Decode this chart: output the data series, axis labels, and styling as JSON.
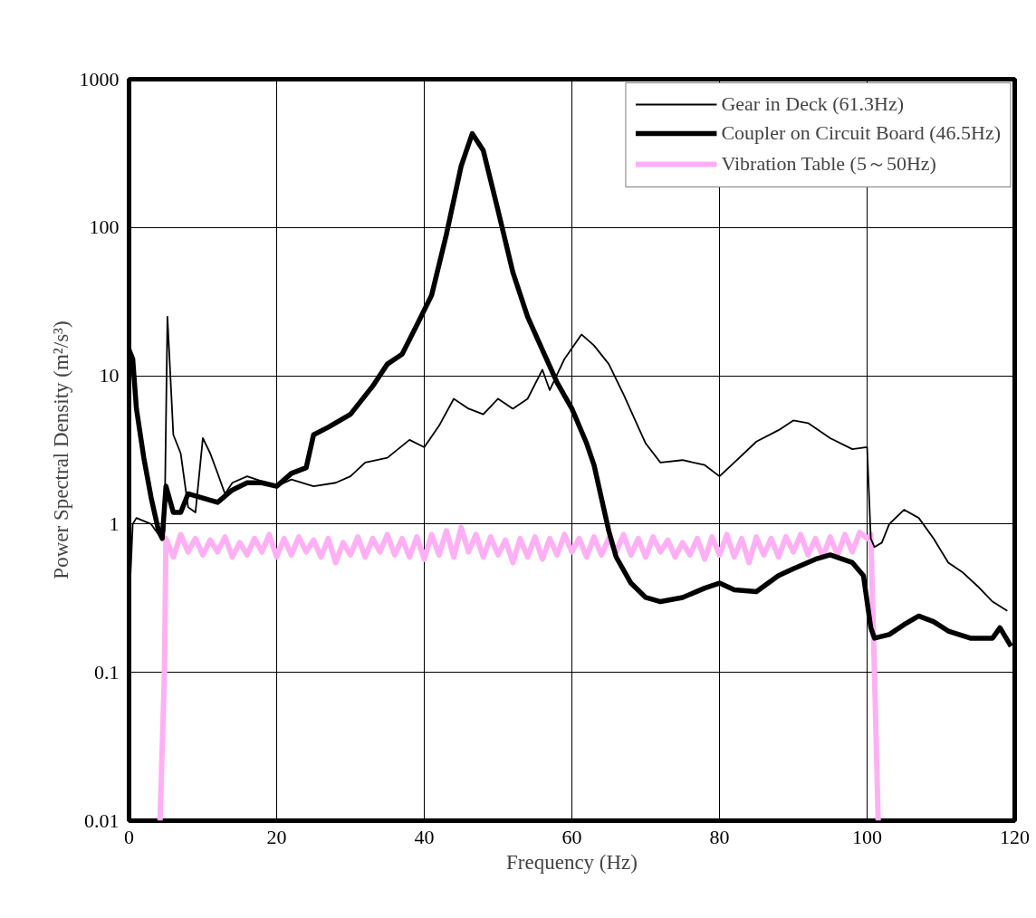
{
  "chart_data": {
    "type": "line",
    "xlabel": "Frequency (Hz)",
    "ylabel": "Power Spectral Density (m²/s³)",
    "xlim": [
      0,
      120
    ],
    "xticks": [
      0,
      20,
      40,
      60,
      80,
      100,
      120
    ],
    "ylim": [
      0.01,
      1000
    ],
    "yticks": [
      0.01,
      0.1,
      1,
      10,
      100,
      1000
    ],
    "log": "y",
    "grid": true,
    "legend": "top right",
    "marker": "none",
    "line_style": "solid",
    "series": [
      {
        "name": "Gear in Deck (61.3Hz)",
        "color": "#000000",
        "x": [
          0,
          0.5,
          1,
          3,
          4,
          4.8,
          5.2,
          6,
          7,
          8,
          9,
          10,
          11,
          12,
          13,
          14,
          16,
          20,
          22,
          25,
          28,
          30,
          32,
          35,
          38,
          40,
          42,
          44,
          46,
          48,
          50,
          52,
          54,
          56,
          57,
          59,
          61.3,
          63,
          65,
          67,
          69,
          70,
          72,
          75,
          78,
          80,
          82,
          85,
          88,
          90,
          92,
          95,
          98,
          100,
          100.5,
          101,
          102,
          103,
          105,
          107,
          109,
          111,
          113,
          115,
          117,
          119
        ],
        "values": [
          0.27,
          1.0,
          1.1,
          1.0,
          0.85,
          0.9,
          25,
          4,
          3,
          1.3,
          1.2,
          3.8,
          3,
          2.2,
          1.6,
          1.9,
          2.1,
          1.8,
          2.0,
          1.8,
          1.9,
          2.1,
          2.6,
          2.8,
          3.7,
          3.3,
          4.6,
          7,
          6,
          5.5,
          7,
          6,
          7,
          11,
          8,
          13,
          19,
          16,
          12,
          7.5,
          4.5,
          3.5,
          2.6,
          2.7,
          2.5,
          2.1,
          2.6,
          3.6,
          4.3,
          5,
          4.8,
          3.8,
          3.2,
          3.3,
          0.8,
          0.7,
          0.75,
          1.0,
          1.25,
          1.1,
          0.8,
          0.55,
          0.47,
          0.38,
          0.3,
          0.26
        ]
      },
      {
        "name": "Coupler on Circuit Board (46.5Hz)",
        "color": "#000000",
        "x": [
          0,
          0.5,
          1,
          2,
          3,
          4,
          4.5,
          5,
          6,
          7,
          8,
          10,
          12,
          14,
          16,
          18,
          20,
          22,
          24,
          25,
          27,
          30,
          33,
          35,
          37,
          39,
          41,
          43,
          45,
          46.5,
          48,
          50,
          52,
          54,
          56,
          58,
          60,
          62,
          63,
          64,
          65,
          66,
          68,
          70,
          72,
          75,
          78,
          80,
          82,
          85,
          88,
          90,
          93,
          95,
          98,
          99.5,
          100.5,
          101,
          103,
          105,
          107,
          109,
          111,
          114,
          117,
          118,
          119.5
        ],
        "values": [
          15,
          13,
          6,
          2.8,
          1.5,
          0.9,
          0.8,
          1.8,
          1.2,
          1.2,
          1.6,
          1.5,
          1.4,
          1.7,
          1.9,
          1.9,
          1.8,
          2.2,
          2.4,
          4,
          4.5,
          5.5,
          8.5,
          12,
          14,
          22,
          35,
          90,
          260,
          430,
          330,
          130,
          50,
          25,
          15,
          9,
          6,
          3.5,
          2.5,
          1.5,
          0.9,
          0.6,
          0.4,
          0.32,
          0.3,
          0.32,
          0.37,
          0.4,
          0.36,
          0.35,
          0.45,
          0.5,
          0.58,
          0.62,
          0.55,
          0.45,
          0.2,
          0.17,
          0.18,
          0.21,
          0.24,
          0.22,
          0.19,
          0.17,
          0.17,
          0.2,
          0.15
        ]
      },
      {
        "name": "Vibration Table (5～50Hz)",
        "color": "#ffb0f5",
        "x": [
          4.2,
          4.8,
          5,
          6,
          7,
          8,
          9,
          10,
          11,
          12,
          13,
          14,
          15,
          16,
          17,
          18,
          19,
          20,
          21,
          22,
          23,
          24,
          25,
          26,
          27,
          28,
          29,
          30,
          31,
          32,
          33,
          34,
          35,
          36,
          37,
          38,
          39,
          40,
          41,
          42,
          43,
          44,
          45,
          46,
          47,
          48,
          49,
          50,
          51,
          52,
          53,
          54,
          55,
          56,
          57,
          58,
          59,
          60,
          61,
          62,
          63,
          64,
          65,
          66,
          67,
          68,
          69,
          70,
          71,
          72,
          73,
          74,
          75,
          76,
          77,
          78,
          79,
          80,
          81,
          82,
          83,
          84,
          85,
          86,
          87,
          88,
          89,
          90,
          91,
          92,
          93,
          94,
          95,
          96,
          97,
          98,
          99,
          100,
          100.5,
          101,
          101.5
        ],
        "values": [
          0.01,
          0.1,
          0.8,
          0.6,
          0.85,
          0.65,
          0.8,
          0.62,
          0.78,
          0.65,
          0.82,
          0.6,
          0.75,
          0.62,
          0.8,
          0.65,
          0.85,
          0.6,
          0.8,
          0.62,
          0.82,
          0.65,
          0.78,
          0.6,
          0.8,
          0.55,
          0.75,
          0.62,
          0.82,
          0.6,
          0.8,
          0.65,
          0.85,
          0.62,
          0.8,
          0.6,
          0.82,
          0.58,
          0.85,
          0.62,
          0.9,
          0.6,
          0.95,
          0.65,
          0.85,
          0.6,
          0.82,
          0.62,
          0.78,
          0.55,
          0.8,
          0.6,
          0.82,
          0.58,
          0.8,
          0.62,
          0.85,
          0.65,
          0.8,
          0.6,
          0.82,
          0.62,
          0.8,
          0.65,
          0.85,
          0.62,
          0.8,
          0.6,
          0.82,
          0.65,
          0.78,
          0.6,
          0.75,
          0.62,
          0.8,
          0.58,
          0.82,
          0.62,
          0.85,
          0.6,
          0.8,
          0.55,
          0.82,
          0.62,
          0.8,
          0.6,
          0.82,
          0.65,
          0.85,
          0.62,
          0.8,
          0.6,
          0.82,
          0.62,
          0.85,
          0.65,
          0.88,
          0.8,
          0.85,
          0.1,
          0.01
        ]
      }
    ]
  }
}
